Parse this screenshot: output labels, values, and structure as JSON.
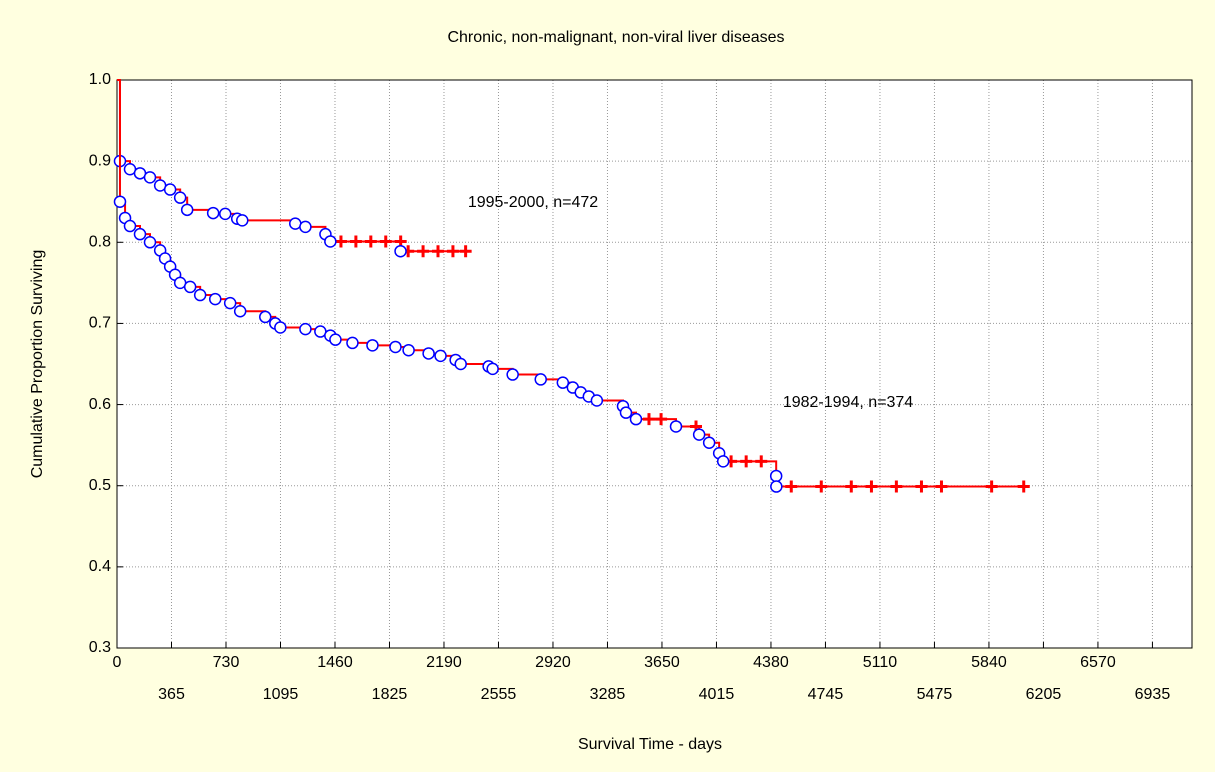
{
  "chart_data": {
    "type": "step",
    "title": "Chronic, non-malignant, non-viral liver diseases",
    "x_label": "Survival Time - days",
    "y_label": "Cumulative Proportion Surviving",
    "xlim": [
      0,
      7200
    ],
    "ylim": [
      0.3,
      1.0
    ],
    "xticks": [
      0,
      365,
      730,
      1095,
      1460,
      1825,
      2190,
      2555,
      2920,
      3285,
      3650,
      4015,
      4380,
      4745,
      5110,
      5475,
      5840,
      6205,
      6570,
      6935
    ],
    "yticks": [
      0.3,
      0.4,
      0.5,
      0.6,
      0.7,
      0.8,
      0.9,
      {
        "value": 1,
        "label": "1.0"
      }
    ],
    "grid": true,
    "series": [
      {
        "name": "1995-2000, n=472",
        "color": "#ff0000",
        "marker_color": "#0000ff",
        "x": [
          0,
          20,
          87,
          154,
          221,
          289,
          356,
          423,
          470,
          644,
          725,
          805,
          839,
          1194,
          1262,
          1396,
          1429,
          1899
        ],
        "values": [
          1,
          0.9,
          0.89,
          0.885,
          0.88,
          0.87,
          0.865,
          0.855,
          0.84,
          0.836,
          0.835,
          0.829,
          0.827,
          0.823,
          0.819,
          0.81,
          0.801,
          0.789
        ],
        "censored": {
          "x": [
            1500,
            1600,
            1700,
            1800,
            1900,
            1950,
            2050,
            2150,
            2250,
            2335
          ],
          "values": [
            0.801,
            0.801,
            0.801,
            0.801,
            0.801,
            0.789,
            0.789,
            0.789,
            0.789,
            0.789
          ]
        }
      },
      {
        "name": "1982-1994, n=374",
        "color": "#ff0000",
        "marker_color": "#0000ff",
        "x": [
          0,
          20,
          54,
          87,
          154,
          221,
          289,
          322,
          356,
          389,
          423,
          490,
          557,
          658,
          758,
          825,
          993,
          1060,
          1094,
          1262,
          1362,
          1429,
          1463,
          1577,
          1711,
          1865,
          1953,
          2087,
          2167,
          2268,
          2302,
          2489,
          2516,
          2650,
          2838,
          2986,
          3053,
          3106,
          3160,
          3214,
          3389,
          3409,
          3476,
          3744,
          3899,
          3966,
          4033,
          4060,
          4415,
          4416
        ],
        "values": [
          1,
          0.85,
          0.83,
          0.82,
          0.81,
          0.8,
          0.79,
          0.78,
          0.77,
          0.76,
          0.75,
          0.745,
          0.735,
          0.73,
          0.725,
          0.715,
          0.708,
          0.7,
          0.695,
          0.693,
          0.69,
          0.685,
          0.68,
          0.676,
          0.673,
          0.671,
          0.667,
          0.663,
          0.66,
          0.655,
          0.65,
          0.647,
          0.644,
          0.637,
          0.631,
          0.627,
          0.621,
          0.615,
          0.61,
          0.605,
          0.598,
          0.59,
          0.582,
          0.573,
          0.563,
          0.553,
          0.54,
          0.53,
          0.512,
          0.499
        ],
        "censored": {
          "x": [
            3563,
            3644,
            3878,
            4113,
            4214,
            4315,
            4516,
            4717,
            4918,
            5053,
            5220,
            5388,
            5522,
            5858,
            6073
          ],
          "values": [
            0.582,
            0.582,
            0.573,
            0.53,
            0.53,
            0.53,
            0.499,
            0.499,
            0.499,
            0.499,
            0.499,
            0.499,
            0.499,
            0.499,
            0.499
          ]
        }
      }
    ],
    "annotation_positions": null
  }
}
